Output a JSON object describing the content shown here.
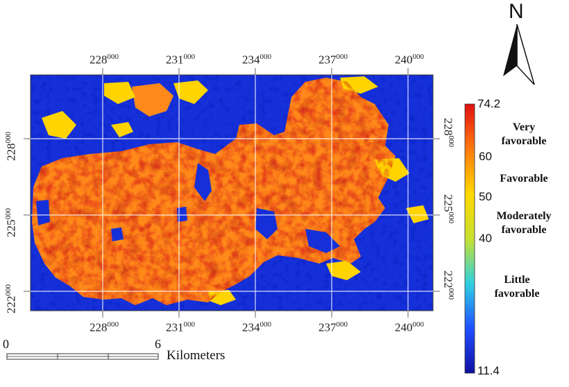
{
  "map": {
    "colors": {
      "water_low": "#1530d8",
      "deep_blue": "#0a1ab8",
      "yellow": "#ffd400",
      "orange": "#ff8a1a",
      "red": "#e0301a",
      "dark_red": "#b01010"
    }
  },
  "axes": {
    "top_ticks": [
      {
        "main": "228",
        "sub": "000"
      },
      {
        "main": "231",
        "sub": "000"
      },
      {
        "main": "234",
        "sub": "000"
      },
      {
        "main": "237",
        "sub": "000"
      },
      {
        "main": "240",
        "sub": "000"
      }
    ],
    "bottom_ticks": [
      {
        "main": "228",
        "sub": "000"
      },
      {
        "main": "231",
        "sub": "000"
      },
      {
        "main": "234",
        "sub": "000"
      },
      {
        "main": "237",
        "sub": "000"
      },
      {
        "main": "240",
        "sub": "000"
      }
    ],
    "left_ticks": [
      {
        "main": "228",
        "sub": "000"
      },
      {
        "main": "225",
        "sub": "000"
      },
      {
        "main": "222",
        "sub": "000"
      }
    ],
    "right_ticks": [
      {
        "main": "228",
        "sub": "000"
      },
      {
        "main": "225",
        "sub": "000"
      },
      {
        "main": "222",
        "sub": "000"
      }
    ]
  },
  "north_arrow": {
    "label": "N",
    "icon": "north-arrow-icon"
  },
  "legend": {
    "max": "74.2",
    "min": "11.4",
    "ticks": [
      "60",
      "50",
      "40"
    ],
    "classes": [
      {
        "line1": "Very",
        "line2": "favorable"
      },
      {
        "line1": "Favorable",
        "line2": ""
      },
      {
        "line1": "Moderately",
        "line2": "favorable"
      },
      {
        "line1": "Little",
        "line2": "favorable"
      }
    ],
    "gradient": [
      "#e01010",
      "#ff7a10",
      "#ffd800",
      "#c8e030",
      "#30d0e0",
      "#2050ff",
      "#1010a0"
    ]
  },
  "scale_bar": {
    "start": "0",
    "end": "6",
    "unit": "Kilometers"
  }
}
